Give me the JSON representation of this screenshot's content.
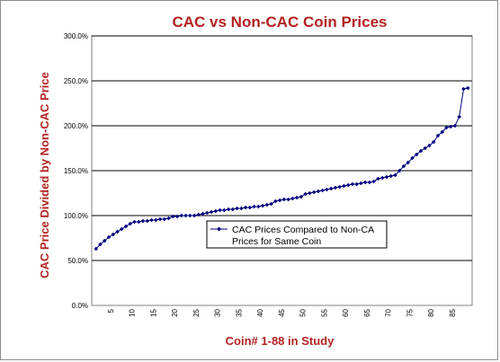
{
  "chart_data": {
    "type": "line",
    "title": "CAC vs Non-CAC Coin Prices",
    "xlabel": "Coin# 1-88 in Study",
    "ylabel": "CAC Price Divided by Non-CAC Price",
    "ylim": [
      0,
      3.0
    ],
    "y_ticks": [
      "0.0%",
      "50.0%",
      "100.0%",
      "150.0%",
      "200.0%",
      "250.0%",
      "300.0%"
    ],
    "y_tick_values": [
      0,
      0.5,
      1.0,
      1.5,
      2.0,
      2.5,
      3.0
    ],
    "xlim": [
      0,
      89
    ],
    "x_ticks": [
      5,
      10,
      15,
      20,
      25,
      30,
      35,
      40,
      45,
      50,
      55,
      60,
      65,
      70,
      75,
      80,
      85
    ],
    "grid": "horizontal",
    "legend_position": "center",
    "series": [
      {
        "name": "CAC Prices Compared to Non-CAC Prices for Same Coin",
        "legend_lines": [
          "CAC Prices Compared to Non-CA",
          "Prices for Same Coin"
        ],
        "color": "#000080",
        "marker": "diamond",
        "x": [
          1,
          2,
          3,
          4,
          5,
          6,
          7,
          8,
          9,
          10,
          11,
          12,
          13,
          14,
          15,
          16,
          17,
          18,
          19,
          20,
          21,
          22,
          23,
          24,
          25,
          26,
          27,
          28,
          29,
          30,
          31,
          32,
          33,
          34,
          35,
          36,
          37,
          38,
          39,
          40,
          41,
          42,
          43,
          44,
          45,
          46,
          47,
          48,
          49,
          50,
          51,
          52,
          53,
          54,
          55,
          56,
          57,
          58,
          59,
          60,
          61,
          62,
          63,
          64,
          65,
          66,
          67,
          68,
          69,
          70,
          71,
          72,
          73,
          74,
          75,
          76,
          77,
          78,
          79,
          80,
          81,
          82,
          83,
          84,
          85,
          86,
          87,
          88
        ],
        "values": [
          0.63,
          0.68,
          0.72,
          0.76,
          0.79,
          0.82,
          0.85,
          0.88,
          0.91,
          0.93,
          0.93,
          0.94,
          0.94,
          0.95,
          0.95,
          0.96,
          0.96,
          0.97,
          0.99,
          0.99,
          1.0,
          1.0,
          1.0,
          1.0,
          1.01,
          1.02,
          1.03,
          1.04,
          1.05,
          1.06,
          1.06,
          1.07,
          1.07,
          1.08,
          1.08,
          1.09,
          1.09,
          1.1,
          1.1,
          1.11,
          1.12,
          1.13,
          1.16,
          1.17,
          1.18,
          1.18,
          1.19,
          1.2,
          1.21,
          1.24,
          1.25,
          1.26,
          1.27,
          1.28,
          1.29,
          1.3,
          1.31,
          1.32,
          1.33,
          1.34,
          1.35,
          1.35,
          1.36,
          1.37,
          1.37,
          1.38,
          1.41,
          1.42,
          1.43,
          1.44,
          1.45,
          1.5,
          1.55,
          1.59,
          1.64,
          1.68,
          1.72,
          1.75,
          1.78,
          1.82,
          1.89,
          1.93,
          1.98,
          1.99,
          2.0,
          2.1,
          2.41,
          2.42
        ]
      }
    ]
  }
}
